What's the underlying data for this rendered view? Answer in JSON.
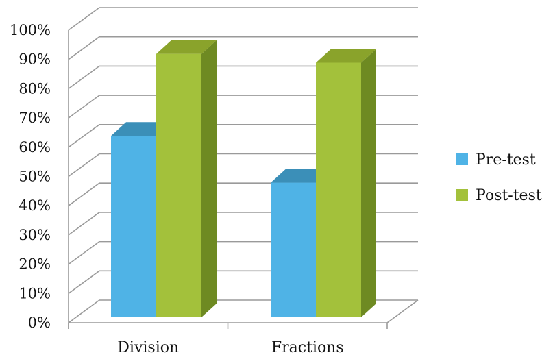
{
  "chart_data": {
    "type": "bar",
    "categories": [
      "Division",
      "Fractions"
    ],
    "series": [
      {
        "name": "Pre-test",
        "values": [
          62,
          46
        ]
      },
      {
        "name": "Post-test",
        "values": [
          90,
          87
        ]
      }
    ],
    "ylim": [
      0,
      100
    ],
    "y_ticks": [
      "0%",
      "10%",
      "20%",
      "30%",
      "40%",
      "50%",
      "60%",
      "70%",
      "80%",
      "90%",
      "100%"
    ],
    "grid": true,
    "style_3d": true,
    "legend_position": "right",
    "colors": {
      "pre_front": "#4FB3E6",
      "pre_top": "#3B8FB8",
      "post_front": "#A3C13B",
      "post_top": "#8AA32B",
      "post_side": "#6E8A22",
      "grid": "#9a9a9a"
    }
  }
}
